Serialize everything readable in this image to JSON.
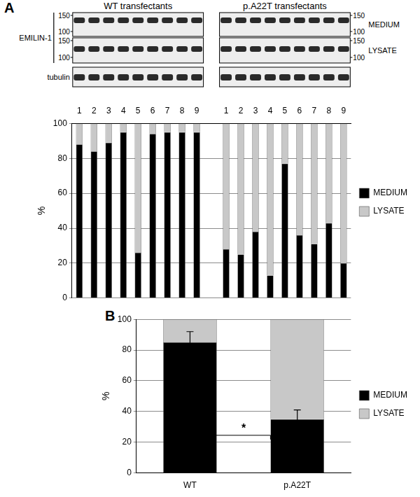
{
  "panel_labels": [
    "A",
    "B"
  ],
  "blots": {
    "groups": [
      "WT transfectants",
      "p.A22T transfectants"
    ],
    "protein_label": "EMILIN-1",
    "loading_control": "tubulin",
    "fractions": [
      "MEDIUM",
      "LYSATE"
    ],
    "mw_markers": [
      150,
      100
    ]
  },
  "chart_data": [
    {
      "type": "bar",
      "stacked": true,
      "grid": true,
      "legend": "right",
      "categories": [
        "1",
        "2",
        "3",
        "4",
        "5",
        "6",
        "7",
        "8",
        "9",
        null,
        "1",
        "2",
        "3",
        "4",
        "5",
        "6",
        "7",
        "8",
        "9"
      ],
      "y_label": "%",
      "ylim": [
        0,
        100
      ],
      "yticks": [
        0,
        20,
        40,
        60,
        80,
        100
      ],
      "series": [
        {
          "name": "MEDIUM",
          "color": "#000000",
          "values": [
            88,
            84,
            89,
            95,
            26,
            94,
            95,
            95,
            95,
            null,
            28,
            25,
            38,
            13,
            77,
            36,
            31,
            43,
            20
          ]
        },
        {
          "name": "LYSATE",
          "color": "#c8c8c8",
          "values": [
            12,
            16,
            11,
            5,
            74,
            6,
            5,
            5,
            5,
            null,
            72,
            75,
            62,
            87,
            23,
            64,
            69,
            57,
            80
          ]
        }
      ]
    },
    {
      "type": "bar",
      "stacked": true,
      "grid": true,
      "legend": "right",
      "categories": [
        "WT",
        "p.A22T"
      ],
      "y_label": "%",
      "ylim": [
        0,
        100
      ],
      "yticks": [
        0,
        20,
        40,
        60,
        80,
        100
      ],
      "series": [
        {
          "name": "MEDIUM",
          "color": "#000000",
          "values": [
            85,
            35
          ],
          "errors": [
            7,
            6
          ]
        },
        {
          "name": "LYSATE",
          "color": "#c8c8c8",
          "values": [
            15,
            65
          ]
        }
      ],
      "annotations": [
        {
          "text": "*"
        }
      ]
    }
  ]
}
